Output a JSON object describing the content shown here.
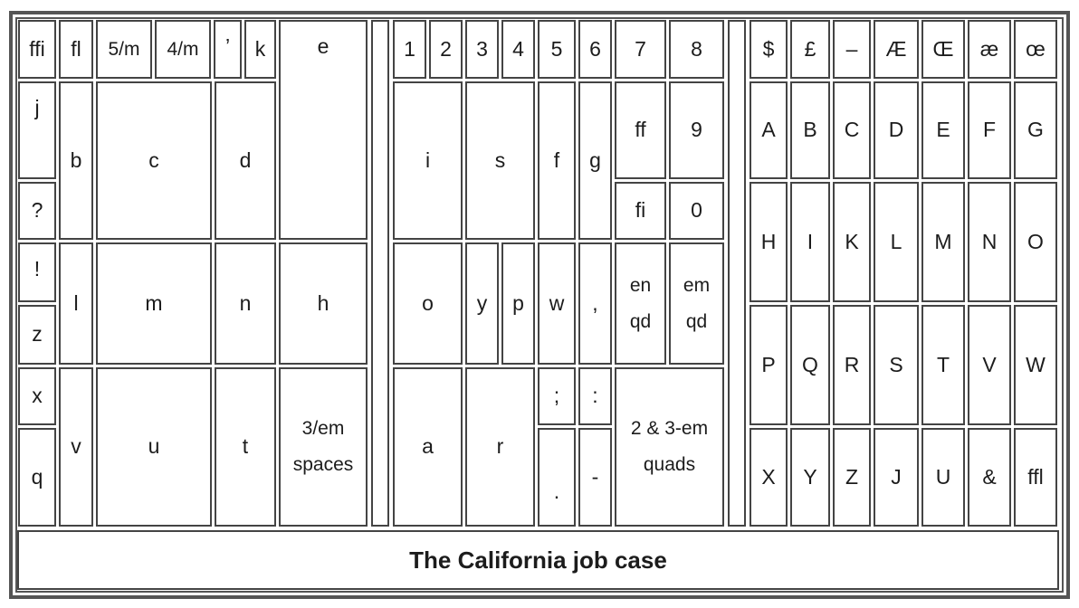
{
  "title": "The California job case",
  "colors": {
    "border": "#444444",
    "outer": "#555555",
    "text": "#1c1c1c",
    "background": "#ffffff"
  },
  "cells": [
    {
      "id": "ffi",
      "label": "ffi"
    },
    {
      "id": "fl",
      "label": "fl"
    },
    {
      "id": "5-m",
      "label": "5/m"
    },
    {
      "id": "4-m",
      "label": "4/m"
    },
    {
      "id": "apostrophe",
      "label": "’"
    },
    {
      "id": "k",
      "label": "k"
    },
    {
      "id": "e",
      "label": "e"
    },
    {
      "id": "gap-1",
      "label": ""
    },
    {
      "id": "1",
      "label": "1"
    },
    {
      "id": "2",
      "label": "2"
    },
    {
      "id": "3",
      "label": "3"
    },
    {
      "id": "4",
      "label": "4"
    },
    {
      "id": "5",
      "label": "5"
    },
    {
      "id": "6",
      "label": "6"
    },
    {
      "id": "7",
      "label": "7"
    },
    {
      "id": "8",
      "label": "8"
    },
    {
      "id": "gap-2",
      "label": ""
    },
    {
      "id": "dollar",
      "label": "$"
    },
    {
      "id": "pound",
      "label": "£"
    },
    {
      "id": "dash",
      "label": "–"
    },
    {
      "id": "AE",
      "label": "Æ"
    },
    {
      "id": "OE",
      "label": "Œ"
    },
    {
      "id": "ae",
      "label": "æ"
    },
    {
      "id": "oe",
      "label": "œ"
    },
    {
      "id": "j",
      "label": "j"
    },
    {
      "id": "b",
      "label": "b"
    },
    {
      "id": "c",
      "label": "c"
    },
    {
      "id": "d",
      "label": "d"
    },
    {
      "id": "i",
      "label": "i"
    },
    {
      "id": "s",
      "label": "s"
    },
    {
      "id": "f",
      "label": "f"
    },
    {
      "id": "g",
      "label": "g"
    },
    {
      "id": "ff",
      "label": "ff"
    },
    {
      "id": "9",
      "label": "9"
    },
    {
      "id": "A",
      "label": "A"
    },
    {
      "id": "B",
      "label": "B"
    },
    {
      "id": "C",
      "label": "C"
    },
    {
      "id": "D",
      "label": "D"
    },
    {
      "id": "E",
      "label": "E"
    },
    {
      "id": "F",
      "label": "F"
    },
    {
      "id": "G",
      "label": "G"
    },
    {
      "id": "question",
      "label": "?"
    },
    {
      "id": "fi",
      "label": "fi"
    },
    {
      "id": "0",
      "label": "0"
    },
    {
      "id": "H",
      "label": "H"
    },
    {
      "id": "I",
      "label": "I"
    },
    {
      "id": "K",
      "label": "K"
    },
    {
      "id": "L",
      "label": "L"
    },
    {
      "id": "M",
      "label": "M"
    },
    {
      "id": "N",
      "label": "N"
    },
    {
      "id": "O",
      "label": "O"
    },
    {
      "id": "exclamation",
      "label": "!"
    },
    {
      "id": "l",
      "label": "l"
    },
    {
      "id": "m",
      "label": "m"
    },
    {
      "id": "n",
      "label": "n"
    },
    {
      "id": "h",
      "label": "h"
    },
    {
      "id": "o",
      "label": "o"
    },
    {
      "id": "y",
      "label": "y"
    },
    {
      "id": "p",
      "label": "p"
    },
    {
      "id": "w",
      "label": "w"
    },
    {
      "id": "comma",
      "label": ","
    },
    {
      "id": "en-qd",
      "label": "en\nqd"
    },
    {
      "id": "em-qd",
      "label": "em\nqd"
    },
    {
      "id": "z",
      "label": "z"
    },
    {
      "id": "P",
      "label": "P"
    },
    {
      "id": "Q",
      "label": "Q"
    },
    {
      "id": "R",
      "label": "R"
    },
    {
      "id": "S",
      "label": "S"
    },
    {
      "id": "T",
      "label": "T"
    },
    {
      "id": "V",
      "label": "V"
    },
    {
      "id": "W",
      "label": "W"
    },
    {
      "id": "x",
      "label": "x"
    },
    {
      "id": "v",
      "label": "v"
    },
    {
      "id": "u",
      "label": "u"
    },
    {
      "id": "t",
      "label": "t"
    },
    {
      "id": "3em-spaces",
      "label": "3/em\nspaces"
    },
    {
      "id": "a",
      "label": "a"
    },
    {
      "id": "r",
      "label": "r"
    },
    {
      "id": "semicolon",
      "label": ";"
    },
    {
      "id": "colon",
      "label": ":"
    },
    {
      "id": "quads",
      "label": "2 & 3-em\nquads"
    },
    {
      "id": "q",
      "label": "q"
    },
    {
      "id": "period",
      "label": "."
    },
    {
      "id": "hyphen",
      "label": "-"
    },
    {
      "id": "X",
      "label": "X"
    },
    {
      "id": "Y",
      "label": "Y"
    },
    {
      "id": "Z",
      "label": "Z"
    },
    {
      "id": "J",
      "label": "J"
    },
    {
      "id": "U",
      "label": "U"
    },
    {
      "id": "ampersand",
      "label": "&"
    },
    {
      "id": "ffl",
      "label": "ffl"
    }
  ]
}
